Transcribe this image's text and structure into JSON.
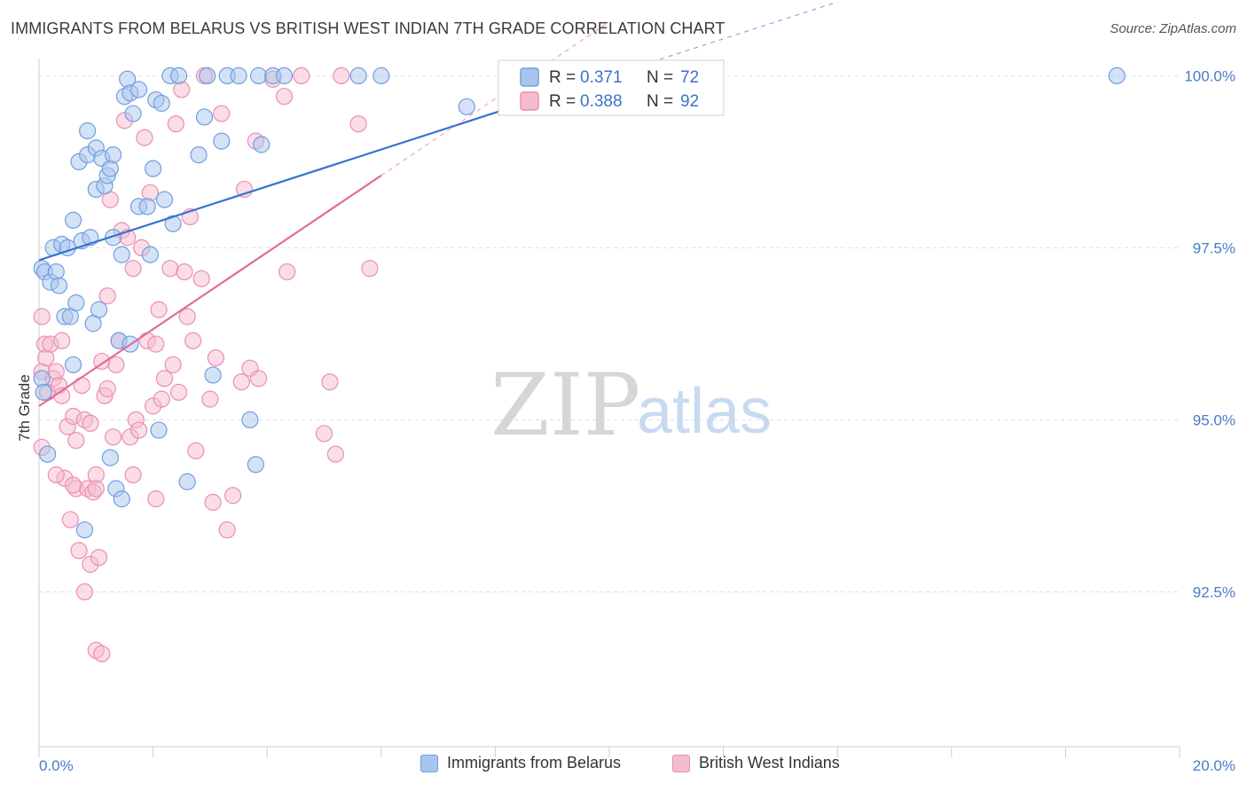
{
  "header": {
    "title": "IMMIGRANTS FROM BELARUS VS BRITISH WEST INDIAN 7TH GRADE CORRELATION CHART",
    "source": "Source: ZipAtlas.com"
  },
  "watermark": {
    "zip": "ZIP",
    "atlas": "atlas"
  },
  "legend": {
    "r_label": "R =",
    "n_label": "N =",
    "rows": [
      {
        "r": "0.371",
        "n": "72"
      },
      {
        "r": "0.388",
        "n": "92"
      }
    ]
  },
  "bottom_legend": [
    "Immigrants from Belarus",
    "British West Indians"
  ],
  "colors": {
    "blue_fill": "#a9c5ee",
    "blue_stroke": "#6f9ee0",
    "blue_line": "#3473d1",
    "pink_fill": "#f5bcd0",
    "pink_stroke": "#e98fb0",
    "pink_line": "#e46c97",
    "tick_text": "#4a7bc8",
    "grid": "#dddddd"
  },
  "chart_data": {
    "type": "scatter",
    "title": "IMMIGRANTS FROM BELARUS VS BRITISH WEST INDIAN 7TH GRADE CORRELATION CHART",
    "xlabel": "",
    "ylabel": "7th Grade",
    "xlim": [
      0,
      20
    ],
    "ylim": [
      90.25,
      100.25
    ],
    "x_tick_labels": [
      "0.0%",
      "20.0%"
    ],
    "y_ticks": [
      92.5,
      95.0,
      97.5,
      100.0
    ],
    "y_tick_labels": [
      "92.5%",
      "95.0%",
      "97.5%",
      "100.0%"
    ],
    "grid": "horizontal dashed",
    "legend_position": "top-center",
    "series": [
      {
        "name": "Immigrants from Belarus",
        "R": 0.371,
        "N": 72,
        "trend": {
          "x0": 0,
          "y0": 97.32,
          "x1": 10,
          "y1": 100.0,
          "dashed_to_x": 14
        },
        "points": [
          [
            0.05,
            97.2
          ],
          [
            0.05,
            95.6
          ],
          [
            0.08,
            95.4
          ],
          [
            0.1,
            97.15
          ],
          [
            0.15,
            94.5
          ],
          [
            0.2,
            97.0
          ],
          [
            0.25,
            97.5
          ],
          [
            0.3,
            97.15
          ],
          [
            0.35,
            96.95
          ],
          [
            0.4,
            97.55
          ],
          [
            0.45,
            96.5
          ],
          [
            0.5,
            97.5
          ],
          [
            0.55,
            96.5
          ],
          [
            0.6,
            97.9
          ],
          [
            0.6,
            95.8
          ],
          [
            0.65,
            96.7
          ],
          [
            0.7,
            98.75
          ],
          [
            0.75,
            97.6
          ],
          [
            0.8,
            93.4
          ],
          [
            0.85,
            99.2
          ],
          [
            0.85,
            98.85
          ],
          [
            0.9,
            97.65
          ],
          [
            0.95,
            96.4
          ],
          [
            1.0,
            98.95
          ],
          [
            1.0,
            98.35
          ],
          [
            1.05,
            96.6
          ],
          [
            1.1,
            98.8
          ],
          [
            1.15,
            98.4
          ],
          [
            1.2,
            98.55
          ],
          [
            1.25,
            94.45
          ],
          [
            1.25,
            98.65
          ],
          [
            1.3,
            97.65
          ],
          [
            1.3,
            98.85
          ],
          [
            1.35,
            94.0
          ],
          [
            1.4,
            96.15
          ],
          [
            1.45,
            97.4
          ],
          [
            1.45,
            93.85
          ],
          [
            1.5,
            99.7
          ],
          [
            1.55,
            99.95
          ],
          [
            1.6,
            99.75
          ],
          [
            1.6,
            96.1
          ],
          [
            1.65,
            99.45
          ],
          [
            1.75,
            99.8
          ],
          [
            1.75,
            98.1
          ],
          [
            1.9,
            98.1
          ],
          [
            1.95,
            97.4
          ],
          [
            2.0,
            98.65
          ],
          [
            2.05,
            99.65
          ],
          [
            2.1,
            94.85
          ],
          [
            2.15,
            99.6
          ],
          [
            2.2,
            98.2
          ],
          [
            2.3,
            100.0
          ],
          [
            2.35,
            97.85
          ],
          [
            2.45,
            100.0
          ],
          [
            2.6,
            94.1
          ],
          [
            2.8,
            98.85
          ],
          [
            2.9,
            99.4
          ],
          [
            2.95,
            100.0
          ],
          [
            3.05,
            95.65
          ],
          [
            3.2,
            99.05
          ],
          [
            3.3,
            100.0
          ],
          [
            3.5,
            100.0
          ],
          [
            3.7,
            95.0
          ],
          [
            3.8,
            94.35
          ],
          [
            3.85,
            100.0
          ],
          [
            3.9,
            99.0
          ],
          [
            4.1,
            100.0
          ],
          [
            4.3,
            100.0
          ],
          [
            5.6,
            100.0
          ],
          [
            6.0,
            100.0
          ],
          [
            7.5,
            99.55
          ],
          [
            18.9,
            100.0
          ]
        ]
      },
      {
        "name": "British West Indians",
        "R": 0.388,
        "N": 92,
        "trend": {
          "x0": 0,
          "y0": 95.2,
          "x1": 6.0,
          "y1": 98.55,
          "dashed_to_x": 10
        },
        "points": [
          [
            0.05,
            96.5
          ],
          [
            0.05,
            95.7
          ],
          [
            0.05,
            94.6
          ],
          [
            0.1,
            96.1
          ],
          [
            0.12,
            95.9
          ],
          [
            0.15,
            95.4
          ],
          [
            0.2,
            96.1
          ],
          [
            0.25,
            95.6
          ],
          [
            0.3,
            95.7
          ],
          [
            0.35,
            95.5
          ],
          [
            0.4,
            95.35
          ],
          [
            0.45,
            94.15
          ],
          [
            0.5,
            94.9
          ],
          [
            0.55,
            93.55
          ],
          [
            0.6,
            95.05
          ],
          [
            0.65,
            94.7
          ],
          [
            0.65,
            94.0
          ],
          [
            0.7,
            93.1
          ],
          [
            0.75,
            95.5
          ],
          [
            0.8,
            92.5
          ],
          [
            0.8,
            95.0
          ],
          [
            0.85,
            94.0
          ],
          [
            0.9,
            92.9
          ],
          [
            0.9,
            94.95
          ],
          [
            0.95,
            93.95
          ],
          [
            1.0,
            91.65
          ],
          [
            1.0,
            94.2
          ],
          [
            1.05,
            93.0
          ],
          [
            1.1,
            91.6
          ],
          [
            1.15,
            95.35
          ],
          [
            1.2,
            96.8
          ],
          [
            1.2,
            95.45
          ],
          [
            1.25,
            98.2
          ],
          [
            1.3,
            94.75
          ],
          [
            1.35,
            95.8
          ],
          [
            1.4,
            96.15
          ],
          [
            1.45,
            97.75
          ],
          [
            1.5,
            99.35
          ],
          [
            1.55,
            97.65
          ],
          [
            1.6,
            94.75
          ],
          [
            1.65,
            97.2
          ],
          [
            1.65,
            94.2
          ],
          [
            1.7,
            95.0
          ],
          [
            1.75,
            94.85
          ],
          [
            1.8,
            97.5
          ],
          [
            1.85,
            99.1
          ],
          [
            1.9,
            96.15
          ],
          [
            1.95,
            98.3
          ],
          [
            2.0,
            95.2
          ],
          [
            2.05,
            96.1
          ],
          [
            2.05,
            93.85
          ],
          [
            2.1,
            96.6
          ],
          [
            2.15,
            95.3
          ],
          [
            2.2,
            95.6
          ],
          [
            2.3,
            97.2
          ],
          [
            2.35,
            95.8
          ],
          [
            2.4,
            99.3
          ],
          [
            2.45,
            95.4
          ],
          [
            2.5,
            99.8
          ],
          [
            2.55,
            97.15
          ],
          [
            2.6,
            96.5
          ],
          [
            2.65,
            97.95
          ],
          [
            2.7,
            96.15
          ],
          [
            2.75,
            94.55
          ],
          [
            2.85,
            97.05
          ],
          [
            2.9,
            100.0
          ],
          [
            3.0,
            95.3
          ],
          [
            3.05,
            93.8
          ],
          [
            3.1,
            95.9
          ],
          [
            3.2,
            99.45
          ],
          [
            3.3,
            93.4
          ],
          [
            3.4,
            93.9
          ],
          [
            3.55,
            95.55
          ],
          [
            3.6,
            98.35
          ],
          [
            3.7,
            95.75
          ],
          [
            3.8,
            99.05
          ],
          [
            3.85,
            95.6
          ],
          [
            4.1,
            99.95
          ],
          [
            4.3,
            99.7
          ],
          [
            4.35,
            97.15
          ],
          [
            4.6,
            100.0
          ],
          [
            5.0,
            94.8
          ],
          [
            5.1,
            95.55
          ],
          [
            5.2,
            94.5
          ],
          [
            5.3,
            100.0
          ],
          [
            5.6,
            99.3
          ],
          [
            5.8,
            97.2
          ],
          [
            0.3,
            94.2
          ],
          [
            0.6,
            94.05
          ],
          [
            1.0,
            94.0
          ],
          [
            0.4,
            96.15
          ],
          [
            1.1,
            95.85
          ]
        ]
      }
    ]
  }
}
